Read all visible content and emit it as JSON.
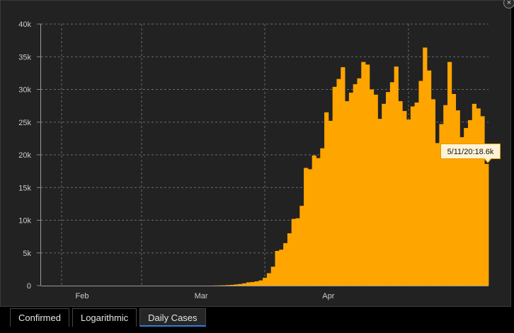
{
  "close_label": "×",
  "tabs": [
    {
      "label": "Confirmed",
      "active": false
    },
    {
      "label": "Logarithmic",
      "active": false
    },
    {
      "label": "Daily Cases",
      "active": true
    }
  ],
  "tooltip": {
    "text": "5/11/20:18.6k"
  },
  "colors": {
    "bar": "#FFA500",
    "panel": "#222222",
    "grid": "#6a6a6a",
    "text": "#cccccc",
    "tab_active_underline": "#2f7ed8"
  },
  "chart_data": {
    "type": "bar",
    "title": "",
    "xlabel": "",
    "ylabel": "",
    "start_date": "2020-01-22",
    "x_ticks": [
      {
        "label": "Feb",
        "date": "2020-02-01"
      },
      {
        "label": "Mar",
        "date": "2020-03-01"
      },
      {
        "label": "Apr",
        "date": "2020-04-01"
      }
    ],
    "y_ticks": [
      {
        "label": "0",
        "value": 0
      },
      {
        "label": "5k",
        "value": 5000
      },
      {
        "label": "10k",
        "value": 10000
      },
      {
        "label": "15k",
        "value": 15000
      },
      {
        "label": "20k",
        "value": 20000
      },
      {
        "label": "25k",
        "value": 25000
      },
      {
        "label": "30k",
        "value": 30000
      },
      {
        "label": "35k",
        "value": 35000
      },
      {
        "label": "40k",
        "value": 40000
      }
    ],
    "ylim": [
      0,
      40000
    ],
    "grid": true,
    "values": [
      0,
      0,
      0,
      0,
      0,
      0,
      0,
      0,
      0,
      0,
      0,
      0,
      0,
      0,
      0,
      0,
      0,
      0,
      0,
      0,
      0,
      0,
      0,
      0,
      0,
      0,
      0,
      0,
      0,
      0,
      0,
      0,
      0,
      0,
      0,
      0,
      0,
      0,
      0,
      0,
      0,
      0,
      20,
      30,
      50,
      80,
      120,
      180,
      250,
      350,
      500,
      550,
      650,
      800,
      1200,
      1900,
      2900,
      5300,
      5500,
      6500,
      8000,
      10200,
      10300,
      12200,
      18000,
      17800,
      19900,
      19500,
      21000,
      26500,
      25200,
      30400,
      31600,
      33400,
      28200,
      29500,
      30800,
      31700,
      34200,
      33800,
      30000,
      29200,
      25500,
      27800,
      29600,
      31100,
      33500,
      28200,
      26700,
      25400,
      27400,
      28000,
      31300,
      36400,
      32900,
      28500,
      21800,
      24700,
      27600,
      34200,
      29300,
      26800,
      22700,
      24100,
      25300,
      27800,
      27100,
      25900,
      18600
    ]
  }
}
